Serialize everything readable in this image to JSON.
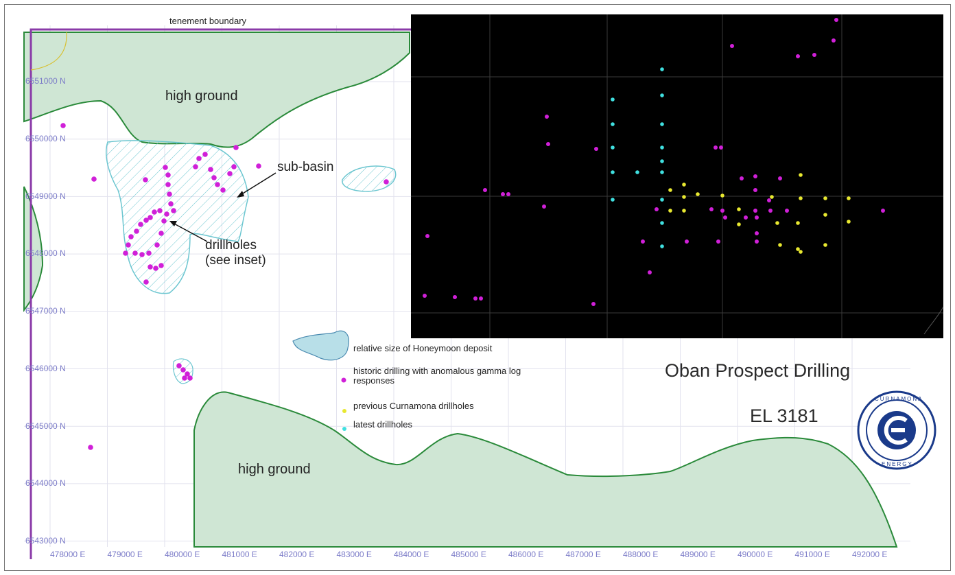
{
  "map": {
    "title": "Oban Prospect Drilling",
    "permit": "EL 3181",
    "tenement_label": "tenement boundary",
    "area_labels": {
      "high_ground_north": "high ground",
      "high_ground_south": "high ground",
      "sub_basin": "sub-basin",
      "drillholes_line1": "drillholes",
      "drillholes_line2": "(see inset)"
    },
    "northings": [
      "6551000 N",
      "6550000 N",
      "6549000 N",
      "6548000 N",
      "6547000 N",
      "6546000 N",
      "6545000 N",
      "6544000 N",
      "6543000 N"
    ],
    "eastings": [
      "478000 E",
      "479000 E",
      "480000 E",
      "481000 E",
      "482000 E",
      "483000 E",
      "484000 E",
      "485000 E",
      "486000 E",
      "487000 E",
      "488000 E",
      "489000 E",
      "490000 E",
      "491000 E",
      "492000 E"
    ],
    "legend": [
      {
        "symbol": "deposit-outline",
        "text": "relative size of Honeymoon deposit"
      },
      {
        "symbol": "magenta-dot",
        "text": "historic drilling with anomalous gamma log responses"
      },
      {
        "symbol": "yellow-dot",
        "text": "previous Curnamona drillholes"
      },
      {
        "symbol": "cyan-dot",
        "text": "latest drillholes"
      }
    ],
    "logo": {
      "text_top": "CURNAMONA",
      "text_bottom": "ENERGY"
    },
    "colors": {
      "high_ground_fill": "#cfe6d4",
      "high_ground_edge": "#2a8a3a",
      "sub_basin_edge": "#6cc6d0",
      "historic": "#d020d8",
      "previous": "#e8e830",
      "latest": "#40e0e0",
      "tenement": "#8a3aa8",
      "inset_bg": "#000000"
    }
  }
}
